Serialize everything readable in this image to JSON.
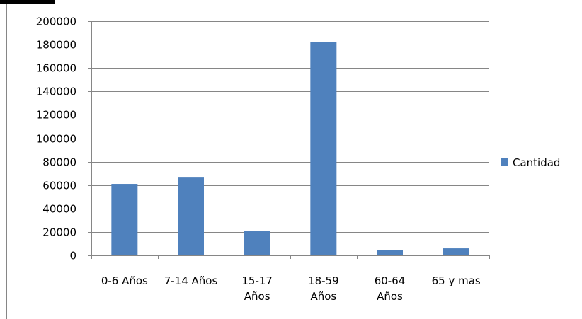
{
  "chart_data": {
    "type": "bar",
    "title": "",
    "xlabel": "",
    "ylabel": "",
    "categories": [
      [
        "0-6  Años"
      ],
      [
        "7-14 Años"
      ],
      [
        "15-17",
        "Años"
      ],
      [
        "18-59",
        "Años"
      ],
      [
        "60-64",
        "Años"
      ],
      [
        "65 y mas"
      ]
    ],
    "series": [
      {
        "name": "Cantidad",
        "color": "#4f81bd",
        "values": [
          61000,
          67000,
          21000,
          182000,
          4500,
          6000
        ]
      }
    ],
    "ylim": [
      0,
      200000
    ],
    "yticks": [
      0,
      20000,
      40000,
      60000,
      80000,
      100000,
      120000,
      140000,
      160000,
      180000,
      200000
    ],
    "grid": true,
    "legend_position": "right"
  },
  "colors": {
    "bar": "#4f81bd",
    "grid": "#868686",
    "axis": "#868686",
    "frame": "#868686"
  }
}
